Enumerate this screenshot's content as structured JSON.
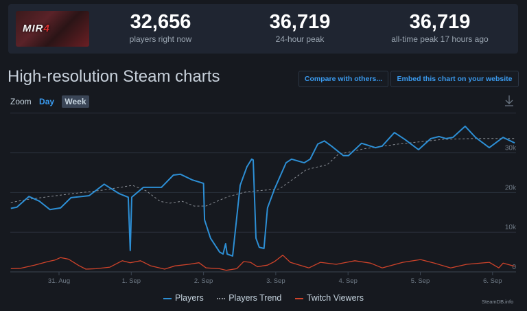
{
  "game": {
    "logo_text": "MIR4"
  },
  "stats": [
    {
      "value": "32,656",
      "label": "players right now"
    },
    {
      "value": "36,719",
      "label": "24-hour peak"
    },
    {
      "value": "36,719",
      "label": "all-time peak 17 hours ago"
    }
  ],
  "header": {
    "title": "High-resolution Steam charts",
    "compare_label": "Compare with others...",
    "embed_label": "Embed this chart on your website"
  },
  "zoom": {
    "label": "Zoom",
    "day": "Day",
    "week": "Week",
    "active": "Week"
  },
  "download_icon": "download-icon",
  "brand": "SteamDB.info",
  "colors": {
    "players": "#2d8fd5",
    "trend": "#8a8f96",
    "twitch": "#d0432a",
    "accent": "#3a9bf0"
  },
  "chart_data": {
    "type": "line",
    "x_range": [
      "08-30 08:00",
      "09-06 08:00"
    ],
    "ylim": [
      0,
      40000
    ],
    "grid": true,
    "legend_position": "bottom",
    "x_ticks": [
      {
        "at": "08-31 00:00",
        "label": "31. Aug"
      },
      {
        "at": "09-01 00:00",
        "label": "1. Sep"
      },
      {
        "at": "09-02 00:00",
        "label": "2. Sep"
      },
      {
        "at": "09-03 00:00",
        "label": "3. Sep"
      },
      {
        "at": "09-04 00:00",
        "label": "4. Sep"
      },
      {
        "at": "09-05 00:00",
        "label": "5. Sep"
      },
      {
        "at": "09-06 00:00",
        "label": "6. Sep"
      }
    ],
    "y_ticks": [
      {
        "value": 0,
        "label": "0"
      },
      {
        "value": 10000,
        "label": "10k"
      },
      {
        "value": 20000,
        "label": "20k"
      },
      {
        "value": 30000,
        "label": "30k"
      },
      {
        "value": 40000,
        "label": ""
      }
    ],
    "series": [
      {
        "name": "Players",
        "style": "solid",
        "points": [
          [
            "08-30 08:00",
            16000
          ],
          [
            "08-30 10:00",
            16300
          ],
          [
            "08-30 14:00",
            19000
          ],
          [
            "08-30 17:30",
            17800
          ],
          [
            "08-30 21:00",
            15700
          ],
          [
            "08-31 00:30",
            16100
          ],
          [
            "08-31 04:00",
            18700
          ],
          [
            "08-31 10:00",
            19200
          ],
          [
            "08-31 15:00",
            22100
          ],
          [
            "08-31 20:00",
            19700
          ],
          [
            "08-31 23:00",
            18800
          ],
          [
            "08-31 23:40",
            5400
          ],
          [
            "09-01 00:10",
            18800
          ],
          [
            "09-01 04:00",
            21300
          ],
          [
            "09-01 10:00",
            21300
          ],
          [
            "09-01 14:00",
            24400
          ],
          [
            "09-01 16:20",
            24600
          ],
          [
            "09-01 20:10",
            23200
          ],
          [
            "09-02 00:00",
            22300
          ],
          [
            "09-02 00:20",
            13100
          ],
          [
            "09-02 02:20",
            8500
          ],
          [
            "09-02 05:20",
            5000
          ],
          [
            "09-02 06:30",
            4500
          ],
          [
            "09-02 07:20",
            7100
          ],
          [
            "09-02 07:50",
            4500
          ],
          [
            "09-02 09:40",
            4000
          ],
          [
            "09-02 12:10",
            21800
          ],
          [
            "09-02 14:25",
            26500
          ],
          [
            "09-02 16:00",
            28400
          ],
          [
            "09-02 16:30",
            28200
          ],
          [
            "09-02 17:25",
            8500
          ],
          [
            "09-02 18:30",
            6200
          ],
          [
            "09-02 20:05",
            5900
          ],
          [
            "09-02 21:15",
            16100
          ],
          [
            "09-02 23:35",
            20900
          ],
          [
            "09-03 03:25",
            27500
          ],
          [
            "09-03 05:15",
            28400
          ],
          [
            "09-03 09:25",
            27500
          ],
          [
            "09-03 11:25",
            28400
          ],
          [
            "09-03 13:55",
            32200
          ],
          [
            "09-03 16:10",
            33000
          ],
          [
            "09-03 18:30",
            31700
          ],
          [
            "09-03 22:25",
            29300
          ],
          [
            "09-04 00:10",
            29300
          ],
          [
            "09-04 04:30",
            32400
          ],
          [
            "09-04 09:05",
            31300
          ],
          [
            "09-04 11:20",
            31700
          ],
          [
            "09-04 15:25",
            35100
          ],
          [
            "09-04 18:50",
            33400
          ],
          [
            "09-04 23:25",
            30800
          ],
          [
            "09-05 03:30",
            33600
          ],
          [
            "09-05 06:15",
            34100
          ],
          [
            "09-05 08:30",
            33600
          ],
          [
            "09-05 10:50",
            33900
          ],
          [
            "09-05 14:55",
            36700
          ],
          [
            "09-05 18:20",
            33900
          ],
          [
            "09-05 22:55",
            31300
          ],
          [
            "09-06 03:30",
            33900
          ],
          [
            "09-06 07:20",
            32500
          ]
        ]
      },
      {
        "name": "Players Trend",
        "style": "dashed",
        "points": [
          [
            "08-30 08:00",
            17500
          ],
          [
            "08-30 14:00",
            18300
          ],
          [
            "08-31 03:10",
            19600
          ],
          [
            "08-31 14:35",
            20600
          ],
          [
            "09-01 00:25",
            21800
          ],
          [
            "09-01 05:00",
            20400
          ],
          [
            "09-01 09:30",
            17800
          ],
          [
            "09-01 12:40",
            17300
          ],
          [
            "09-01 16:50",
            17800
          ],
          [
            "09-01 20:55",
            16600
          ],
          [
            "09-02 00:45",
            16600
          ],
          [
            "09-02 08:15",
            19000
          ],
          [
            "09-02 14:25",
            20200
          ],
          [
            "09-02 23:35",
            20800
          ],
          [
            "09-03 01:10",
            20900
          ],
          [
            "09-03 10:15",
            25800
          ],
          [
            "09-03 17:05",
            27000
          ],
          [
            "09-03 20:45",
            29600
          ],
          [
            "09-04 05:10",
            31000
          ],
          [
            "09-04 16:35",
            32200
          ],
          [
            "09-05 07:50",
            33400
          ],
          [
            "09-05 17:40",
            33600
          ],
          [
            "09-06 07:20",
            33600
          ]
        ]
      },
      {
        "name": "Twitch Viewers",
        "style": "solid",
        "points": [
          [
            "08-30 08:00",
            800
          ],
          [
            "08-30 11:15",
            900
          ],
          [
            "08-30 15:50",
            1700
          ],
          [
            "08-30 20:20",
            2600
          ],
          [
            "08-30 22:40",
            3000
          ],
          [
            "08-31 00:30",
            3600
          ],
          [
            "08-31 03:10",
            3200
          ],
          [
            "08-31 06:35",
            1600
          ],
          [
            "08-31 08:55",
            700
          ],
          [
            "08-31 12:20",
            800
          ],
          [
            "08-31 16:55",
            1200
          ],
          [
            "08-31 21:00",
            2800
          ],
          [
            "08-31 23:40",
            2300
          ],
          [
            "09-01 03:05",
            2800
          ],
          [
            "09-01 06:30",
            1500
          ],
          [
            "09-01 11:05",
            700
          ],
          [
            "09-01 14:30",
            1500
          ],
          [
            "09-01 19:05",
            1900
          ],
          [
            "09-01 22:30",
            2300
          ],
          [
            "09-02 00:50",
            1000
          ],
          [
            "09-02 05:20",
            800
          ],
          [
            "09-02 07:35",
            400
          ],
          [
            "09-02 11:00",
            800
          ],
          [
            "09-02 13:20",
            2600
          ],
          [
            "09-02 15:35",
            2400
          ],
          [
            "09-02 17:55",
            1300
          ],
          [
            "09-02 21:15",
            1700
          ],
          [
            "09-02 23:35",
            2600
          ],
          [
            "09-03 02:20",
            4200
          ],
          [
            "09-03 04:50",
            2400
          ],
          [
            "09-03 11:00",
            1000
          ],
          [
            "09-03 14:50",
            2400
          ],
          [
            "09-03 20:05",
            1900
          ],
          [
            "09-04 02:15",
            2800
          ],
          [
            "09-04 07:30",
            2200
          ],
          [
            "09-04 11:20",
            1000
          ],
          [
            "09-04 18:10",
            2400
          ],
          [
            "09-05 00:05",
            3100
          ],
          [
            "09-05 04:40",
            2200
          ],
          [
            "09-05 10:05",
            1000
          ],
          [
            "09-05 15:25",
            1900
          ],
          [
            "09-05 22:55",
            2400
          ],
          [
            "09-06 02:05",
            1000
          ],
          [
            "09-06 03:30",
            2200
          ],
          [
            "09-06 07:20",
            1400
          ]
        ]
      }
    ]
  }
}
